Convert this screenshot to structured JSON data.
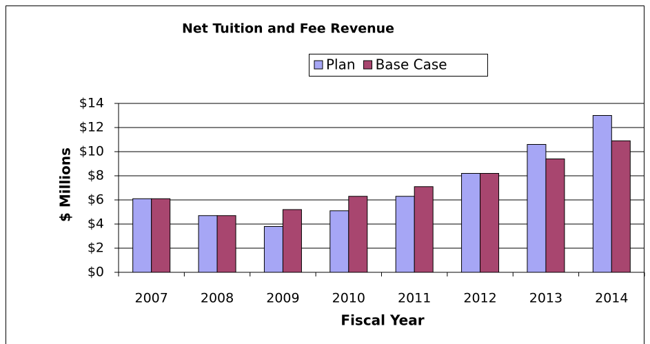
{
  "chart_data": {
    "type": "bar",
    "title": "Net Tuition and Fee Revenue",
    "x_label": "Fiscal Year",
    "y_label": "$ Millions",
    "categories": [
      "2007",
      "2008",
      "2009",
      "2010",
      "2011",
      "2012",
      "2013",
      "2014"
    ],
    "series": [
      {
        "name": "Plan",
        "color": "#a6a6f5",
        "values": [
          6.1,
          4.7,
          3.8,
          5.1,
          6.3,
          8.2,
          10.6,
          13.0
        ]
      },
      {
        "name": "Base Case",
        "color": "#a8466f",
        "values": [
          6.1,
          4.7,
          5.2,
          6.3,
          7.1,
          8.2,
          9.4,
          10.9
        ]
      }
    ],
    "ylim": [
      0,
      14
    ],
    "yticks": [
      {
        "value": 0,
        "label": "$0"
      },
      {
        "value": 2,
        "label": "$2"
      },
      {
        "value": 4,
        "label": "$4"
      },
      {
        "value": 6,
        "label": "$6"
      },
      {
        "value": 8,
        "label": "$8"
      },
      {
        "value": 10,
        "label": "$10"
      },
      {
        "value": 12,
        "label": "$12"
      },
      {
        "value": 14,
        "label": "$14"
      }
    ],
    "grid": true,
    "legend": "top"
  }
}
